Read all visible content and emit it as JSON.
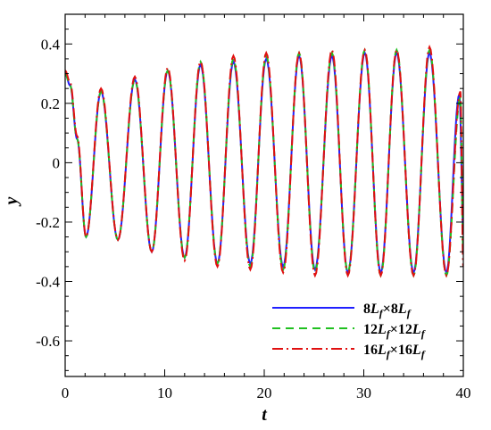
{
  "chart_data": {
    "type": "line",
    "title": "",
    "xlabel": "t",
    "ylabel": "y",
    "xlim": [
      0,
      40
    ],
    "ylim": [
      -0.72,
      0.5
    ],
    "xticks": [
      0,
      10,
      20,
      30,
      40
    ],
    "xtick_labels": [
      "0",
      "10",
      "20",
      "30",
      "40"
    ],
    "yticks": [
      -0.6,
      -0.4,
      -0.2,
      0,
      0.2,
      0.4
    ],
    "ytick_labels": [
      "-0.6",
      "-0.4",
      "-0.2",
      "0",
      "0.2",
      "0.4"
    ],
    "grid": false,
    "legend_position": "bottom-right",
    "series": [
      {
        "name": "8Lf×8Lf",
        "label_parts": [
          [
            "8L",
            "f",
            "×8L",
            "f"
          ]
        ],
        "color": "#2020ff",
        "dash": "solid",
        "points": [
          [
            0,
            0.3
          ],
          [
            0.5,
            0.26
          ],
          [
            1.2,
            0.08
          ],
          [
            2.1,
            -0.25
          ],
          [
            3.6,
            0.24
          ],
          [
            5.3,
            -0.26
          ],
          [
            7.0,
            0.28
          ],
          [
            8.7,
            -0.3
          ],
          [
            10.3,
            0.31
          ],
          [
            12.0,
            -0.32
          ],
          [
            13.6,
            0.33
          ],
          [
            15.3,
            -0.34
          ],
          [
            16.9,
            0.34
          ],
          [
            18.6,
            -0.34
          ],
          [
            20.2,
            0.35
          ],
          [
            21.9,
            -0.35
          ],
          [
            23.5,
            0.36
          ],
          [
            25.1,
            -0.36
          ],
          [
            26.8,
            0.36
          ],
          [
            28.4,
            -0.37
          ],
          [
            30.1,
            0.37
          ],
          [
            31.7,
            -0.37
          ],
          [
            33.3,
            0.37
          ],
          [
            35.0,
            -0.37
          ],
          [
            36.6,
            0.37
          ],
          [
            38.3,
            -0.37
          ],
          [
            39.6,
            0.23
          ],
          [
            40.0,
            -0.22
          ]
        ]
      },
      {
        "name": "12Lf×12Lf",
        "label_parts": [
          [
            "12L",
            "f",
            "×12L",
            "f"
          ]
        ],
        "color": "#20c020",
        "dash": "9,6",
        "points": [
          [
            0,
            0.3
          ],
          [
            0.5,
            0.26
          ],
          [
            1.2,
            0.08
          ],
          [
            2.1,
            -0.25
          ],
          [
            3.6,
            0.24
          ],
          [
            5.3,
            -0.26
          ],
          [
            7.0,
            0.28
          ],
          [
            8.7,
            -0.3
          ],
          [
            10.3,
            0.31
          ],
          [
            12.0,
            -0.32
          ],
          [
            13.6,
            0.34
          ],
          [
            15.3,
            -0.34
          ],
          [
            16.9,
            0.35
          ],
          [
            18.6,
            -0.35
          ],
          [
            20.2,
            0.36
          ],
          [
            21.9,
            -0.36
          ],
          [
            23.5,
            0.37
          ],
          [
            25.1,
            -0.37
          ],
          [
            26.8,
            0.37
          ],
          [
            28.4,
            -0.37
          ],
          [
            30.1,
            0.38
          ],
          [
            31.7,
            -0.38
          ],
          [
            33.3,
            0.38
          ],
          [
            35.0,
            -0.38
          ],
          [
            36.6,
            0.38
          ],
          [
            38.3,
            -0.38
          ],
          [
            39.7,
            0.22
          ],
          [
            40.0,
            -0.3
          ]
        ]
      },
      {
        "name": "16Lf×16Lf",
        "label_parts": [
          [
            "16L",
            "f",
            "×16L",
            "f"
          ]
        ],
        "color": "#e01010",
        "dash": "12,4,2,4",
        "points": [
          [
            0,
            0.31
          ],
          [
            0.5,
            0.27
          ],
          [
            1.2,
            0.09
          ],
          [
            2.1,
            -0.25
          ],
          [
            3.6,
            0.25
          ],
          [
            5.3,
            -0.26
          ],
          [
            7.0,
            0.29
          ],
          [
            8.7,
            -0.3
          ],
          [
            10.3,
            0.32
          ],
          [
            12.0,
            -0.33
          ],
          [
            13.6,
            0.34
          ],
          [
            15.3,
            -0.35
          ],
          [
            16.9,
            0.36
          ],
          [
            18.6,
            -0.36
          ],
          [
            20.2,
            0.37
          ],
          [
            21.9,
            -0.37
          ],
          [
            23.5,
            0.37
          ],
          [
            25.1,
            -0.38
          ],
          [
            26.8,
            0.38
          ],
          [
            28.4,
            -0.38
          ],
          [
            30.1,
            0.38
          ],
          [
            31.7,
            -0.38
          ],
          [
            33.3,
            0.38
          ],
          [
            35.0,
            -0.38
          ],
          [
            36.6,
            0.39
          ],
          [
            38.3,
            -0.38
          ],
          [
            39.7,
            0.24
          ],
          [
            40.0,
            -0.35
          ]
        ]
      }
    ]
  }
}
